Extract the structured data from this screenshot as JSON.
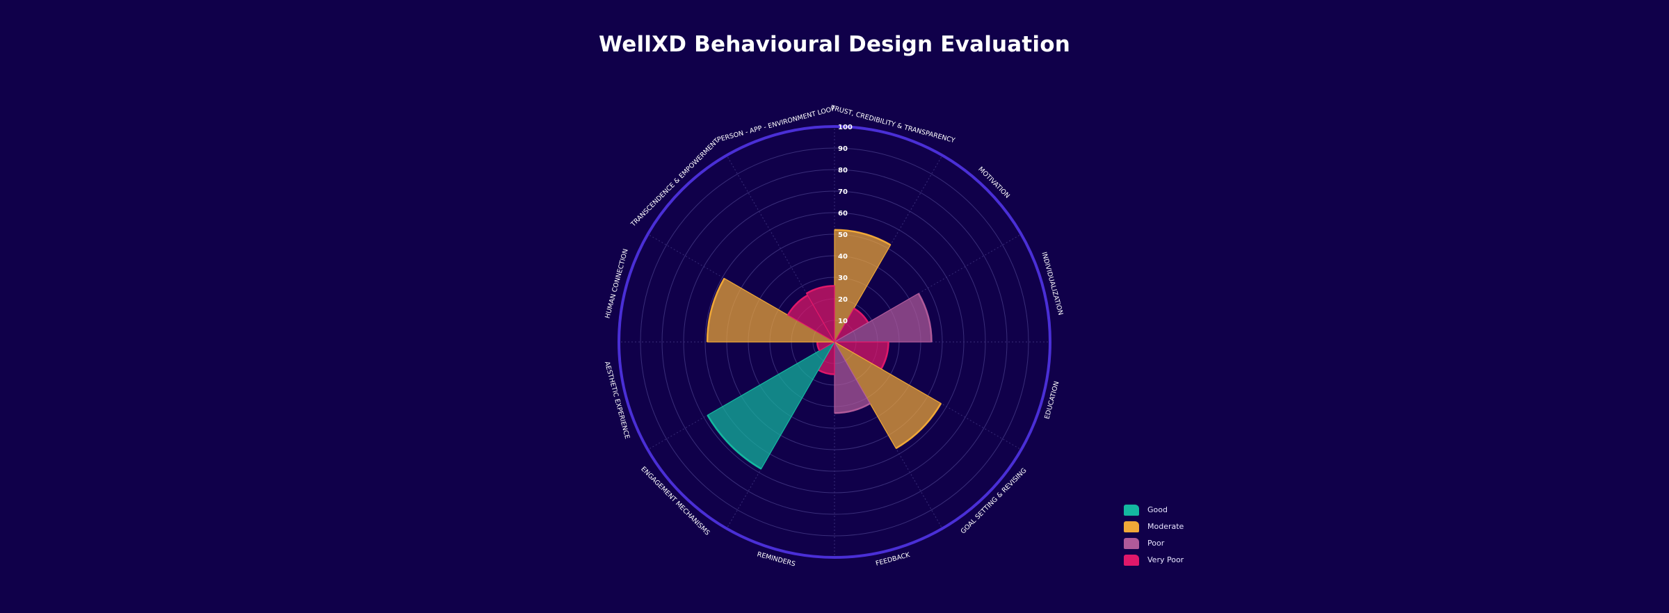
{
  "title": "WellXD Behavioural Design Evaluation",
  "colors": {
    "background": "#10004a",
    "outer_ring": "#4a2fd6",
    "grid": "#3a2e7a",
    "Good": "#14b8a0",
    "Moderate": "#f0a838",
    "Poor": "#b05a9a",
    "Very Poor": "#e0186a"
  },
  "chart_data": {
    "type": "polar-area",
    "title": "WellXD Behavioural Design Evaluation",
    "r_range": [
      0,
      100
    ],
    "r_ticks": [
      "10",
      "20",
      "30",
      "40",
      "50",
      "60",
      "70",
      "80",
      "90",
      "100"
    ],
    "categories": [
      "TRUST, CREDIBILITY & TRANSPARENCY",
      "MOTIVATION",
      "INDIVIDUALIZATION",
      "EDUCATION",
      "GOAL SETTING & REVISING",
      "FEEDBACK",
      "REMINDERS",
      "ENGAGEMENT MECHANISMS",
      "AESTHETIC EXPERIENCE",
      "HUMAN CONNECTION",
      "TRANSCENDENCE & EMPOWERMENT",
      "PERSON - APP - ENVIRONMENT LOOP"
    ],
    "values": [
      52,
      18,
      45,
      25,
      57,
      33,
      15,
      68,
      8,
      59,
      25,
      26
    ],
    "ratings": [
      "Moderate",
      "Very Poor",
      "Poor",
      "Very Poor",
      "Moderate",
      "Poor",
      "Very Poor",
      "Good",
      "Very Poor",
      "Moderate",
      "Very Poor",
      "Very Poor"
    ],
    "legend": [
      "Good",
      "Moderate",
      "Poor",
      "Very Poor"
    ],
    "legend_position": "bottom-right",
    "grid": true
  }
}
